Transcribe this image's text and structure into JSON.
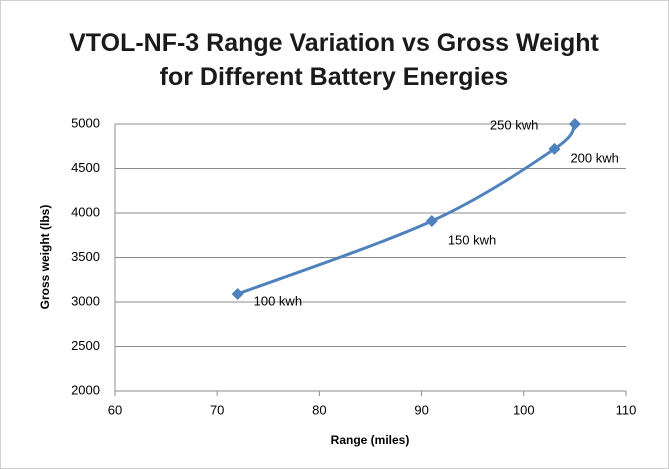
{
  "chart_data": {
    "type": "line",
    "title": "VTOL-NF-3 Range Variation vs Gross Weight for Different Battery Energies",
    "xlabel": "Range (miles)",
    "ylabel": "Gross weight (lbs)",
    "x": [
      72,
      91,
      103,
      105
    ],
    "series": [
      {
        "name": "Gross weight",
        "color": "#4f81bd",
        "values": [
          3090,
          3910,
          4720,
          5000
        ]
      }
    ],
    "point_labels": [
      "100 kwh",
      "150 kwh",
      "200 kwh",
      "250 kwh"
    ],
    "xlim": [
      60,
      110
    ],
    "xticks": [
      60,
      70,
      80,
      90,
      100,
      110
    ],
    "ylim": [
      2000,
      5000
    ],
    "yticks": [
      2000,
      2500,
      3000,
      3500,
      4000,
      4500,
      5000
    ],
    "grid": true
  }
}
